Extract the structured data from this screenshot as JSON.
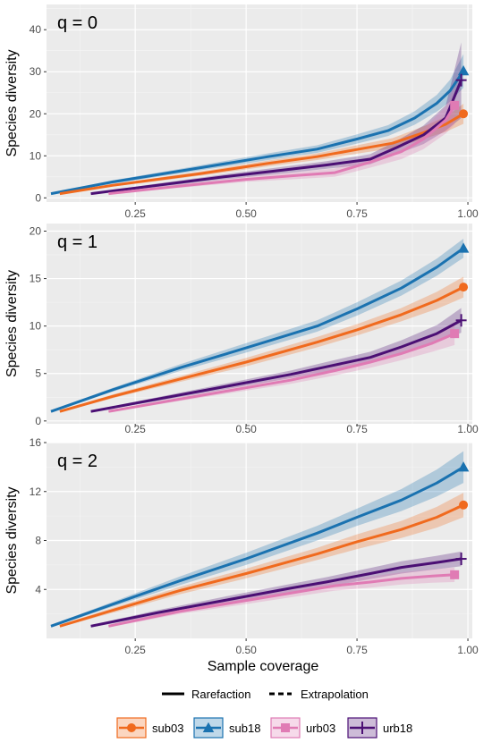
{
  "chart_data": {
    "type": "line",
    "xlabel": "Sample coverage",
    "ylabel": "Species diversity",
    "x_ticks": [
      "0.25",
      "0.50",
      "0.75",
      "1.00"
    ],
    "x_tick_values": [
      0.25,
      0.5,
      0.75,
      1.0
    ],
    "xlim": [
      0.05,
      1.01
    ],
    "colors": {
      "sub03": "#f06a1e",
      "sub18": "#1a72b0",
      "urb03": "#e07bb4",
      "urb18": "#4b0f74"
    },
    "markers": {
      "sub03": "circle",
      "sub18": "triangle",
      "urb03": "square",
      "urb18": "cross"
    },
    "line_types": {
      "rarefaction": "Rarefaction",
      "extrapolation": "Extrapolation"
    },
    "legend_title": "",
    "legend_labels": [
      "sub03",
      "sub18",
      "urb03",
      "urb18"
    ],
    "panels": [
      {
        "title": "q = 0",
        "ylim": [
          -1,
          46
        ],
        "y_ticks": [
          0,
          10,
          20,
          30,
          40
        ],
        "series": [
          {
            "name": "sub18",
            "observed": [
              0.99,
              30.2
            ],
            "points": [
              [
                0.06,
                1.0
              ],
              [
                0.2,
                3.8
              ],
              [
                0.4,
                7.2
              ],
              [
                0.55,
                9.8
              ],
              [
                0.66,
                11.6
              ],
              [
                0.75,
                14.0
              ],
              [
                0.82,
                16.0
              ],
              [
                0.88,
                19.0
              ],
              [
                0.93,
                22.5
              ],
              [
                0.96,
                25.5
              ],
              [
                0.99,
                30.2
              ]
            ],
            "band_halfwidth": [
              0.1,
              0.4,
              0.6,
              0.8,
              0.9,
              1.1,
              1.3,
              1.6,
              2.0,
              2.6,
              4.0
            ]
          },
          {
            "name": "sub03",
            "observed": [
              0.99,
              20.0
            ],
            "points": [
              [
                0.08,
                1.0
              ],
              [
                0.2,
                3.0
              ],
              [
                0.4,
                5.8
              ],
              [
                0.55,
                8.2
              ],
              [
                0.66,
                9.8
              ],
              [
                0.75,
                11.5
              ],
              [
                0.83,
                13.0
              ],
              [
                0.9,
                15.5
              ],
              [
                0.95,
                17.5
              ],
              [
                0.99,
                20.0
              ]
            ],
            "band_halfwidth": [
              0.1,
              0.3,
              0.5,
              0.7,
              0.8,
              1.0,
              1.2,
              1.5,
              1.8,
              2.4
            ]
          },
          {
            "name": "urb18",
            "observed": [
              0.985,
              28.0
            ],
            "points": [
              [
                0.15,
                1.0
              ],
              [
                0.3,
                3.0
              ],
              [
                0.45,
                5.0
              ],
              [
                0.6,
                6.8
              ],
              [
                0.68,
                7.8
              ],
              [
                0.78,
                9.2
              ],
              [
                0.84,
                12.0
              ],
              [
                0.9,
                15.0
              ],
              [
                0.95,
                19.0
              ],
              [
                0.985,
                28.0
              ]
            ],
            "band_halfwidth": [
              0.1,
              0.4,
              0.6,
              0.8,
              0.9,
              1.2,
              1.6,
              2.2,
              3.0,
              9.0
            ]
          },
          {
            "name": "urb03",
            "observed": [
              0.97,
              22.0
            ],
            "points": [
              [
                0.19,
                1.0
              ],
              [
                0.35,
                2.8
              ],
              [
                0.5,
                4.4
              ],
              [
                0.6,
                5.2
              ],
              [
                0.7,
                6.0
              ],
              [
                0.78,
                8.5
              ],
              [
                0.85,
                11.0
              ],
              [
                0.9,
                14.0
              ],
              [
                0.95,
                18.5
              ],
              [
                0.97,
                22.0
              ]
            ],
            "band_halfwidth": [
              0.1,
              0.4,
              0.6,
              0.8,
              1.0,
              1.3,
              1.8,
              2.4,
              3.2,
              4.5
            ]
          }
        ]
      },
      {
        "title": "q = 1",
        "ylim": [
          -0.3,
          20.8
        ],
        "y_ticks": [
          0,
          5,
          10,
          15,
          20
        ],
        "series": [
          {
            "name": "sub18",
            "observed": [
              0.99,
              18.2
            ],
            "points": [
              [
                0.06,
                1.0
              ],
              [
                0.2,
                3.3
              ],
              [
                0.35,
                5.6
              ],
              [
                0.5,
                7.7
              ],
              [
                0.66,
                10.0
              ],
              [
                0.75,
                11.8
              ],
              [
                0.85,
                14.0
              ],
              [
                0.93,
                16.2
              ],
              [
                0.99,
                18.2
              ]
            ],
            "band_halfwidth": [
              0.1,
              0.2,
              0.35,
              0.5,
              0.6,
              0.7,
              0.8,
              0.9,
              1.0
            ]
          },
          {
            "name": "sub03",
            "observed": [
              0.99,
              14.1
            ],
            "points": [
              [
                0.08,
                1.0
              ],
              [
                0.2,
                2.6
              ],
              [
                0.35,
                4.4
              ],
              [
                0.5,
                6.2
              ],
              [
                0.66,
                8.3
              ],
              [
                0.75,
                9.6
              ],
              [
                0.85,
                11.2
              ],
              [
                0.93,
                12.7
              ],
              [
                0.99,
                14.1
              ]
            ],
            "band_halfwidth": [
              0.1,
              0.2,
              0.3,
              0.45,
              0.55,
              0.6,
              0.7,
              0.9,
              1.1
            ]
          },
          {
            "name": "urb18",
            "observed": [
              0.985,
              10.6
            ],
            "points": [
              [
                0.15,
                1.0
              ],
              [
                0.3,
                2.3
              ],
              [
                0.45,
                3.6
              ],
              [
                0.6,
                4.9
              ],
              [
                0.68,
                5.7
              ],
              [
                0.78,
                6.7
              ],
              [
                0.85,
                7.8
              ],
              [
                0.93,
                9.2
              ],
              [
                0.985,
                10.6
              ]
            ],
            "band_halfwidth": [
              0.1,
              0.2,
              0.3,
              0.4,
              0.5,
              0.6,
              0.7,
              0.9,
              1.3
            ]
          },
          {
            "name": "urb03",
            "observed": [
              0.97,
              9.2
            ],
            "points": [
              [
                0.19,
                1.0
              ],
              [
                0.35,
                2.3
              ],
              [
                0.5,
                3.5
              ],
              [
                0.6,
                4.3
              ],
              [
                0.7,
                5.3
              ],
              [
                0.78,
                6.2
              ],
              [
                0.85,
                7.1
              ],
              [
                0.92,
                8.2
              ],
              [
                0.97,
                9.2
              ]
            ],
            "band_halfwidth": [
              0.1,
              0.2,
              0.3,
              0.4,
              0.5,
              0.6,
              0.7,
              0.9,
              1.2
            ]
          }
        ]
      },
      {
        "title": "q = 2",
        "ylim": [
          0,
          16
        ],
        "y_ticks": [
          4,
          8,
          12,
          16
        ],
        "series": [
          {
            "name": "sub18",
            "observed": [
              0.99,
              14.0
            ],
            "points": [
              [
                0.06,
                1.0
              ],
              [
                0.2,
                2.8
              ],
              [
                0.35,
                4.7
              ],
              [
                0.5,
                6.5
              ],
              [
                0.66,
                8.6
              ],
              [
                0.75,
                9.9
              ],
              [
                0.85,
                11.3
              ],
              [
                0.93,
                12.7
              ],
              [
                0.99,
                14.0
              ]
            ],
            "band_halfwidth": [
              0.1,
              0.2,
              0.35,
              0.5,
              0.6,
              0.7,
              0.9,
              1.1,
              1.3
            ]
          },
          {
            "name": "sub03",
            "observed": [
              0.99,
              10.9
            ],
            "points": [
              [
                0.08,
                1.0
              ],
              [
                0.2,
                2.3
              ],
              [
                0.35,
                3.9
              ],
              [
                0.5,
                5.3
              ],
              [
                0.66,
                6.9
              ],
              [
                0.75,
                7.9
              ],
              [
                0.85,
                8.9
              ],
              [
                0.93,
                9.9
              ],
              [
                0.99,
                10.9
              ]
            ],
            "band_halfwidth": [
              0.1,
              0.2,
              0.3,
              0.4,
              0.5,
              0.6,
              0.7,
              0.85,
              1.0
            ]
          },
          {
            "name": "urb18",
            "observed": [
              0.985,
              6.5
            ],
            "points": [
              [
                0.15,
                1.0
              ],
              [
                0.3,
                2.1
              ],
              [
                0.45,
                3.1
              ],
              [
                0.6,
                4.1
              ],
              [
                0.68,
                4.6
              ],
              [
                0.78,
                5.3
              ],
              [
                0.85,
                5.8
              ],
              [
                0.93,
                6.2
              ],
              [
                0.985,
                6.5
              ]
            ],
            "band_halfwidth": [
              0.1,
              0.2,
              0.3,
              0.35,
              0.4,
              0.45,
              0.5,
              0.55,
              0.6
            ]
          },
          {
            "name": "urb03",
            "observed": [
              0.97,
              5.2
            ],
            "points": [
              [
                0.19,
                1.0
              ],
              [
                0.35,
                2.2
              ],
              [
                0.5,
                3.1
              ],
              [
                0.6,
                3.7
              ],
              [
                0.7,
                4.3
              ],
              [
                0.78,
                4.6
              ],
              [
                0.85,
                4.9
              ],
              [
                0.92,
                5.1
              ],
              [
                0.97,
                5.2
              ]
            ],
            "band_halfwidth": [
              0.1,
              0.2,
              0.3,
              0.35,
              0.4,
              0.45,
              0.5,
              0.55,
              0.6
            ]
          }
        ]
      }
    ]
  }
}
